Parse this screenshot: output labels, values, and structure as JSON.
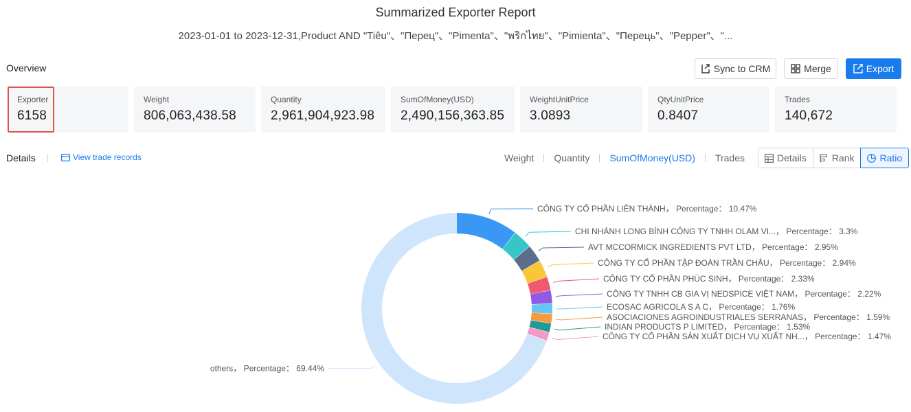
{
  "report": {
    "title": "Summarized Exporter Report",
    "subtitle": "2023-01-01 to 2023-12-31,Product AND \"Tiêu\"、\"Перец\"、\"Pimenta\"、\"พริกไทย\"、\"Pimienta\"、\"Перець\"、\"Pepper\"、\"..."
  },
  "overview": {
    "label": "Overview",
    "buttons": {
      "sync": "Sync to CRM",
      "merge": "Merge",
      "export": "Export"
    },
    "cards": [
      {
        "label": "Exporter",
        "value": "6158"
      },
      {
        "label": "Weight",
        "value": "806,063,438.58"
      },
      {
        "label": "Quantity",
        "value": "2,961,904,923.98"
      },
      {
        "label": "SumOfMoney(USD)",
        "value": "2,490,156,363.85"
      },
      {
        "label": "WeightUnitPrice",
        "value": "3.0893"
      },
      {
        "label": "QtyUnitPrice",
        "value": "0.8407"
      },
      {
        "label": "Trades",
        "value": "140,672"
      }
    ]
  },
  "details": {
    "label": "Details",
    "view_link": "View trade records",
    "metric_tabs": [
      "Weight",
      "Quantity",
      "SumOfMoney(USD)",
      "Trades"
    ],
    "active_metric": "SumOfMoney(USD)",
    "view_modes": [
      "Details",
      "Rank",
      "Ratio"
    ],
    "active_view": "Ratio"
  },
  "chart_data": {
    "type": "pie",
    "variant": "donut",
    "percentage_label": "Percentage：",
    "slices": [
      {
        "name": "CÔNG TY CỔ PHẦN LIÊN THÀNH，",
        "value": 10.47,
        "label": "10.47%",
        "color": "#3a97f3"
      },
      {
        "name": "CHI NHÁNH LONG BÌNH CÔNG TY TNHH OLAM VI...，",
        "value": 3.3,
        "label": "3.3%",
        "color": "#36c6c8"
      },
      {
        "name": "AVT MCCORMICK INGREDIENTS PVT LTD，",
        "value": 2.95,
        "label": "2.95%",
        "color": "#5a6e8c"
      },
      {
        "name": "CÔNG TY CỔ PHẦN TẬP ĐOÀN TRẦN CHÂU，",
        "value": 2.94,
        "label": "2.94%",
        "color": "#f7c739"
      },
      {
        "name": "CÔNG TY CỔ PHẦN PHÚC SINH，",
        "value": 2.33,
        "label": "2.33%",
        "color": "#ef5a6f"
      },
      {
        "name": "CÔNG TY TNHH CB GIA VỊ NEDSPICE VIỆT NAM，",
        "value": 2.22,
        "label": "2.22%",
        "color": "#8e5ae6"
      },
      {
        "name": "ECOSAC AGRICOLA S A C，",
        "value": 1.76,
        "label": "1.76%",
        "color": "#6ac4f0"
      },
      {
        "name": "ASOCIACIONES AGROINDUSTRIALES SERRANAS，",
        "value": 1.59,
        "label": "1.59%",
        "color": "#f79a3c"
      },
      {
        "name": "INDIAN PRODUCTS P LIMITED，",
        "value": 1.53,
        "label": "1.53%",
        "color": "#1f9a94"
      },
      {
        "name": "CÔNG TY CỔ PHẦN SẢN XUẤT DỊCH VỤ XUẤT NH...，",
        "value": 1.47,
        "label": "1.47%",
        "color": "#f59ac6"
      },
      {
        "name": "others，",
        "value": 69.44,
        "label": "69.44%",
        "color": "#cfe5fb"
      }
    ]
  }
}
